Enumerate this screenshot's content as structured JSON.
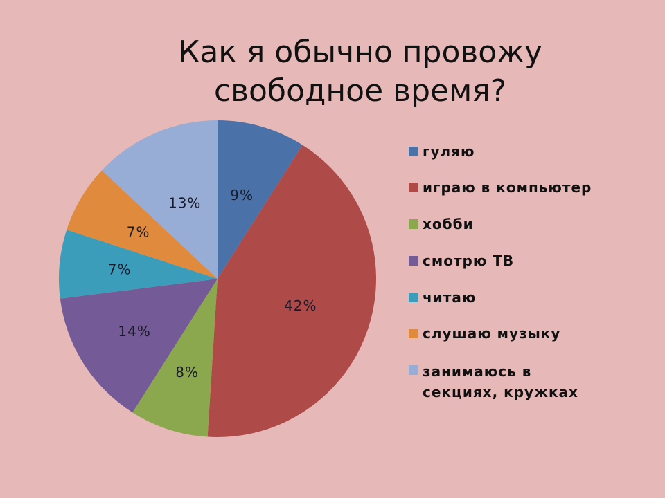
{
  "title": {
    "line1": "Как я обычно провожу",
    "line2": "свободное время?"
  },
  "chart_data": {
    "type": "pie",
    "title": "Как я обычно провожу свободное время?",
    "start_angle_deg": 0,
    "direction": "clockwise",
    "center": [
      314,
      403
    ],
    "radius": 229,
    "legend_position": "right",
    "slices": [
      {
        "label": "гуляю",
        "value": 9,
        "display": "9%",
        "color": "#4A72A8"
      },
      {
        "label": "играю в компьютер",
        "value": 42,
        "display": "42%",
        "color": "#AE4A48"
      },
      {
        "label": "хобби",
        "value": 8,
        "display": "8%",
        "color": "#8BA84E"
      },
      {
        "label": "смотрю ТВ",
        "value": 14,
        "display": "14%",
        "color": "#745A96"
      },
      {
        "label": "читаю",
        "value": 7,
        "display": "7%",
        "color": "#3C9DBA"
      },
      {
        "label": "слушаю музыку",
        "value": 7,
        "display": "7%",
        "color": "#E08A3E"
      },
      {
        "label": "занимаюсь в\nсекциях, кружках",
        "value": 13,
        "display": "13%",
        "color": "#97ADD6"
      }
    ]
  },
  "legend": {
    "items": [
      {
        "label": "гуляю",
        "color": "#4A72A8"
      },
      {
        "label": "играю в компьютер",
        "color": "#AE4A48"
      },
      {
        "label": "хобби",
        "color": "#8BA84E"
      },
      {
        "label": "смотрю ТВ",
        "color": "#745A96"
      },
      {
        "label": "читаю",
        "color": "#3C9DBA"
      },
      {
        "label": "слушаю музыку",
        "color": "#E08A3E"
      },
      {
        "label": "занимаюсь в\nсекциях, кружках",
        "color": "#97ADD6"
      }
    ]
  },
  "colors": {
    "background": "#E6B8B8",
    "text": "#111111"
  }
}
